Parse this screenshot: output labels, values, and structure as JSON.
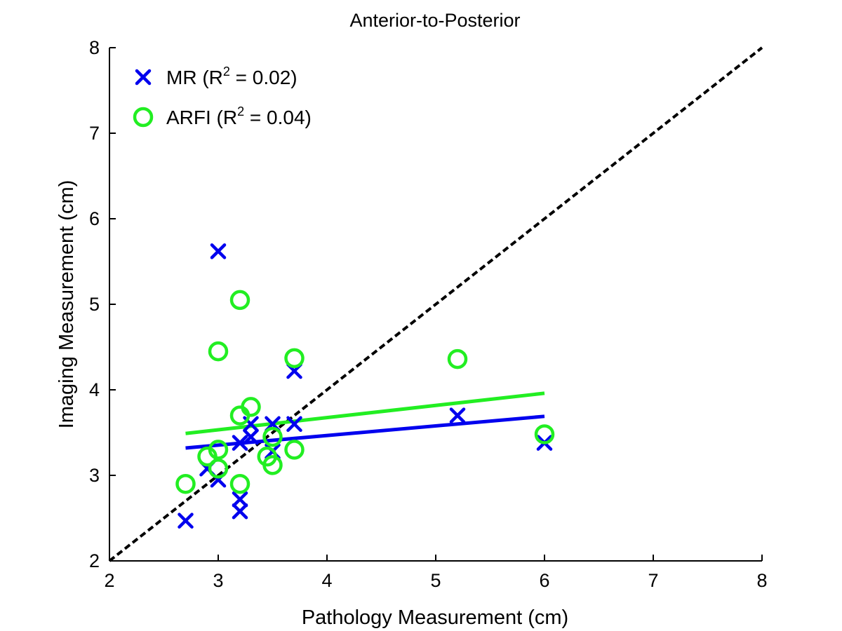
{
  "chart_data": {
    "type": "scatter",
    "title": "Anterior-to-Posterior",
    "xlabel": "Pathology Measurement (cm)",
    "ylabel": "Imaging Measurement (cm)",
    "xlim": [
      2,
      8
    ],
    "ylim": [
      2,
      8
    ],
    "xticks": [
      "2",
      "3",
      "4",
      "5",
      "6",
      "7",
      "8"
    ],
    "yticks": [
      "2",
      "3",
      "4",
      "5",
      "6",
      "7",
      "8"
    ],
    "grid": false,
    "legend_position": "top-left",
    "identity_line": {
      "x": [
        2,
        8
      ],
      "y": [
        2,
        8
      ],
      "style": "dashed",
      "color": "#000000"
    },
    "series": [
      {
        "name": "MR",
        "r2_label": "0.02",
        "marker": "x",
        "color": "#0000ee",
        "x": [
          2.7,
          2.9,
          3.0,
          3.0,
          3.2,
          3.2,
          3.2,
          3.3,
          3.3,
          3.5,
          3.5,
          3.7,
          3.7,
          5.2,
          6.0
        ],
        "y": [
          2.47,
          3.08,
          5.62,
          2.95,
          3.38,
          2.72,
          2.58,
          3.6,
          3.45,
          3.6,
          3.28,
          4.22,
          3.6,
          3.7,
          3.38
        ],
        "fit": {
          "x": [
            2.7,
            6.0
          ],
          "y": [
            3.32,
            3.69
          ]
        }
      },
      {
        "name": "ARFI",
        "r2_label": "0.04",
        "marker": "o",
        "color": "#22ee22",
        "x": [
          2.7,
          2.9,
          3.0,
          3.0,
          3.0,
          3.2,
          3.2,
          3.2,
          3.3,
          3.45,
          3.5,
          3.5,
          3.7,
          3.7,
          5.2,
          6.0
        ],
        "y": [
          2.9,
          3.22,
          4.45,
          3.3,
          3.08,
          5.05,
          3.7,
          2.9,
          3.8,
          3.22,
          3.45,
          3.12,
          4.37,
          3.3,
          4.36,
          3.48
        ],
        "fit": {
          "x": [
            2.7,
            6.0
          ],
          "y": [
            3.49,
            3.96
          ]
        }
      }
    ]
  }
}
